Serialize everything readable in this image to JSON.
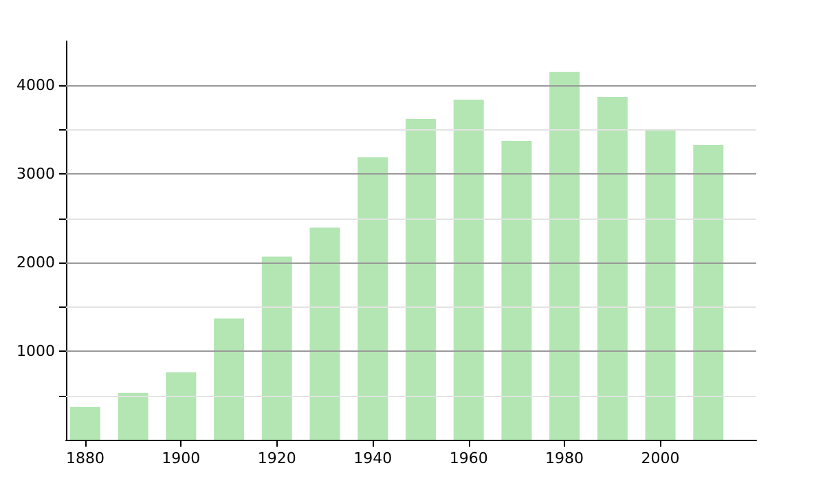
{
  "chart_data": {
    "type": "bar",
    "x": [
      1880,
      1890,
      1900,
      1910,
      1920,
      1930,
      1940,
      1950,
      1960,
      1970,
      1980,
      1990,
      2000,
      2010
    ],
    "values": [
      373,
      529,
      762,
      1369,
      2068,
      2395,
      3188,
      3624,
      3841,
      3375,
      4152,
      3872,
      3499,
      3328
    ],
    "color": "#b3e6b3",
    "xlim": [
      1876,
      2020
    ],
    "xticks": [
      1880,
      1900,
      1920,
      1940,
      1960,
      1980,
      2000
    ],
    "ylim": [
      0,
      4500
    ],
    "yticks": [
      {
        "value": 500,
        "label": null
      },
      1000,
      {
        "value": 1500,
        "label": null
      },
      2000,
      {
        "value": 2500,
        "label": null
      },
      3000,
      {
        "value": 3500,
        "label": null
      },
      4000
    ],
    "grid": "y"
  }
}
